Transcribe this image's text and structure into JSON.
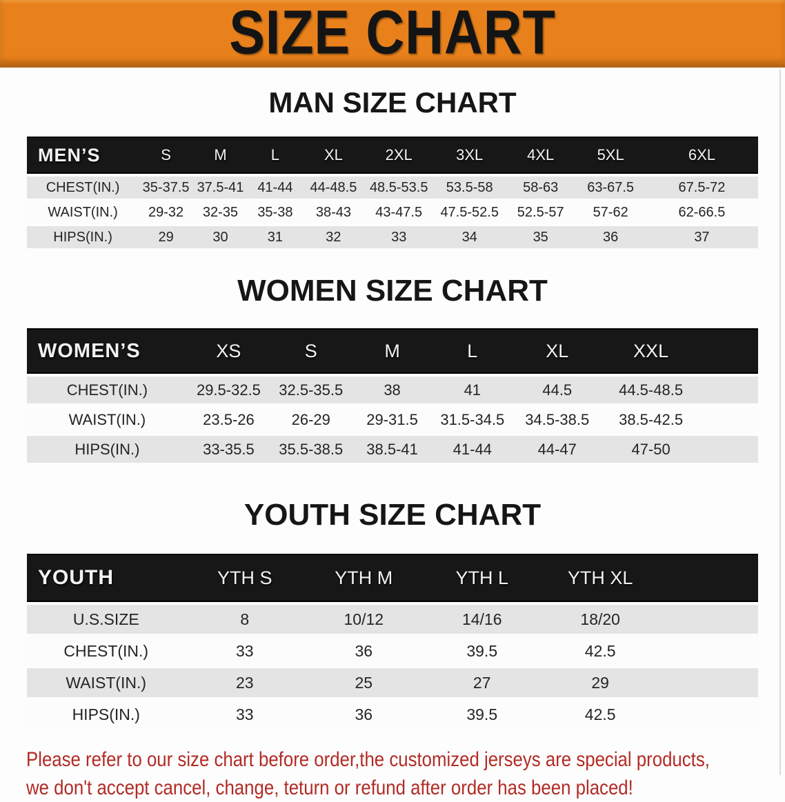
{
  "banner": {
    "title": "SIZE CHART"
  },
  "colors": {
    "banner_bg": "#E8811B",
    "banner_text": "#141414",
    "header_bar_bg": "#171717",
    "header_bar_text": "#F2F2F2",
    "row_alt_bg": "#E4E4E4",
    "row_bg": "#FCFCFC",
    "cell_text": "#242424",
    "footer_text": "#B22B25"
  },
  "sections": [
    {
      "heading": "MAN SIZE CHART",
      "table": {
        "header_label": "MEN’S",
        "columns": [
          "S",
          "M",
          "L",
          "XL",
          "2XL",
          "3XL",
          "4XL",
          "5XL",
          "6XL"
        ],
        "rows": [
          {
            "label": "CHEST(IN.)",
            "values": [
              "35-37.5",
              "37.5-41",
              "41-44",
              "44-48.5",
              "48.5-53.5",
              "53.5-58",
              "58-63",
              "63-67.5",
              "67.5-72"
            ]
          },
          {
            "label": "WAIST(IN.)",
            "values": [
              "29-32",
              "32-35",
              "35-38",
              "38-43",
              "43-47.5",
              "47.5-52.5",
              "52.5-57",
              "57-62",
              "62-66.5"
            ]
          },
          {
            "label": "HIPS(IN.)",
            "values": [
              "29",
              "30",
              "31",
              "32",
              "33",
              "34",
              "35",
              "36",
              "37"
            ]
          }
        ]
      }
    },
    {
      "heading": "WOMEN SIZE CHART",
      "table": {
        "header_label": "WOMEN’S",
        "columns": [
          "XS",
          "S",
          "M",
          "L",
          "XL",
          "XXL"
        ],
        "rows": [
          {
            "label": "CHEST(IN.)",
            "values": [
              "29.5-32.5",
              "32.5-35.5",
              "38",
              "41",
              "44.5",
              "44.5-48.5"
            ]
          },
          {
            "label": "WAIST(IN.)",
            "values": [
              "23.5-26",
              "26-29",
              "29-31.5",
              "31.5-34.5",
              "34.5-38.5",
              "38.5-42.5"
            ]
          },
          {
            "label": "HIPS(IN.)",
            "values": [
              "33-35.5",
              "35.5-38.5",
              "38.5-41",
              "41-44",
              "44-47",
              "47-50"
            ]
          }
        ]
      }
    },
    {
      "heading": "YOUTH SIZE CHART",
      "table": {
        "header_label": "YOUTH",
        "columns": [
          "YTH S",
          "YTH M",
          "YTH L",
          "YTH XL"
        ],
        "rows": [
          {
            "label": "U.S.SIZE",
            "values": [
              "8",
              "10/12",
              "14/16",
              "18/20"
            ]
          },
          {
            "label": "CHEST(IN.)",
            "values": [
              "33",
              "36",
              "39.5",
              "42.5"
            ]
          },
          {
            "label": "WAIST(IN.)",
            "values": [
              "23",
              "25",
              "27",
              "29"
            ]
          },
          {
            "label": "HIPS(IN.)",
            "values": [
              "33",
              "36",
              "39.5",
              "42.5"
            ]
          }
        ]
      }
    }
  ],
  "footer": {
    "line1": "Please refer to our size chart before order,the customized jerseys are special products,",
    "line2": "we don't accept cancel, change, teturn or refund after order has been placed!"
  }
}
